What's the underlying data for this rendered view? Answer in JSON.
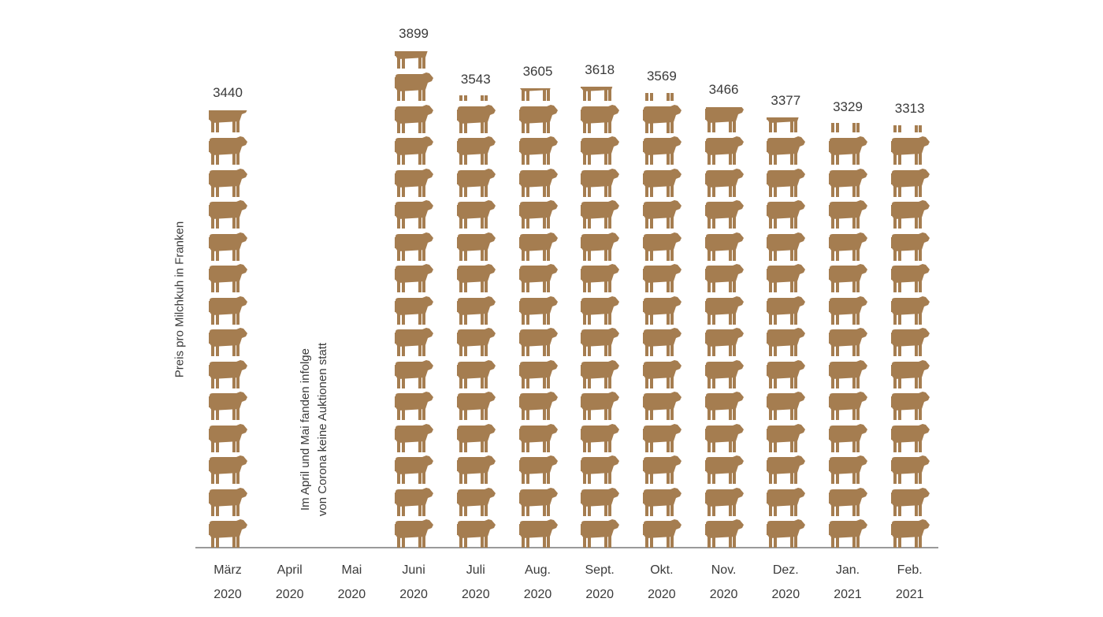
{
  "chart_data": {
    "type": "pictogram-bar",
    "ylabel": "Preis pro Milchkuh in Franken",
    "units_per_icon": 250,
    "icon": "cow-icon",
    "icon_color": "#a57d50",
    "axis_color": "#9a9a9a",
    "annotation": [
      "Im April und Mai fanden infolge",
      "von Corona keine Auktionen statt"
    ],
    "categories": [
      {
        "month": "März",
        "year": "2020",
        "value": 3440
      },
      {
        "month": "April",
        "year": "2020",
        "value": null
      },
      {
        "month": "Mai",
        "year": "2020",
        "value": null
      },
      {
        "month": "Juni",
        "year": "2020",
        "value": 3899
      },
      {
        "month": "Juli",
        "year": "2020",
        "value": 3543
      },
      {
        "month": "Aug.",
        "year": "2020",
        "value": 3605
      },
      {
        "month": "Sept.",
        "year": "2020",
        "value": 3618
      },
      {
        "month": "Okt.",
        "year": "2020",
        "value": 3569
      },
      {
        "month": "Nov.",
        "year": "2020",
        "value": 3466
      },
      {
        "month": "Dez.",
        "year": "2020",
        "value": 3377
      },
      {
        "month": "Jan.",
        "year": "2021",
        "value": 3329
      },
      {
        "month": "Feb.",
        "year": "2021",
        "value": 3313
      }
    ]
  }
}
